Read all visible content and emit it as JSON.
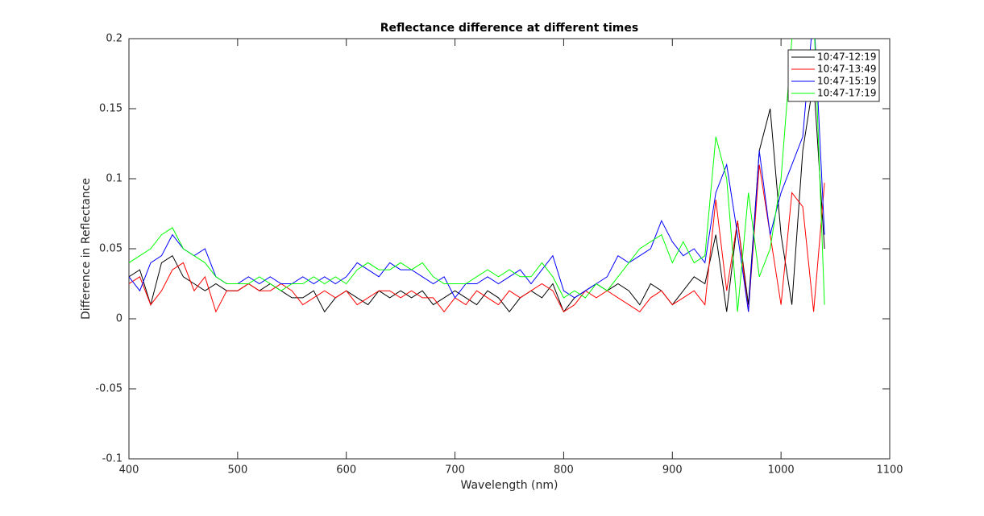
{
  "chart_data": {
    "type": "line",
    "title": "Reflectance difference at different times",
    "xlabel": "Wavelength (nm)",
    "ylabel": "Difference in Reflectance",
    "x": [
      400,
      410,
      420,
      430,
      440,
      450,
      460,
      470,
      480,
      490,
      500,
      510,
      520,
      530,
      540,
      550,
      560,
      570,
      580,
      590,
      600,
      610,
      620,
      630,
      640,
      650,
      660,
      670,
      680,
      690,
      700,
      710,
      720,
      730,
      740,
      750,
      760,
      770,
      780,
      790,
      800,
      810,
      820,
      830,
      840,
      850,
      860,
      870,
      880,
      890,
      900,
      910,
      920,
      930,
      940,
      950,
      960,
      970,
      980,
      990,
      1000,
      1010,
      1020,
      1030,
      1040
    ],
    "series": [
      {
        "name": "10:47-12:19",
        "color": "#000000",
        "values": [
          0.03,
          0.035,
          0.01,
          0.04,
          0.045,
          0.03,
          0.025,
          0.02,
          0.025,
          0.02,
          0.02,
          0.025,
          0.02,
          0.025,
          0.02,
          0.015,
          0.015,
          0.02,
          0.005,
          0.015,
          0.02,
          0.015,
          0.01,
          0.02,
          0.015,
          0.02,
          0.015,
          0.02,
          0.01,
          0.015,
          0.02,
          0.015,
          0.01,
          0.02,
          0.015,
          0.005,
          0.015,
          0.02,
          0.015,
          0.025,
          0.005,
          0.015,
          0.02,
          0.025,
          0.02,
          0.025,
          0.02,
          0.01,
          0.025,
          0.02,
          0.01,
          0.02,
          0.03,
          0.025,
          0.06,
          0.005,
          0.07,
          0.01,
          0.12,
          0.15,
          0.06,
          0.01,
          0.12,
          0.17,
          0.05
        ]
      },
      {
        "name": "10:47-13:49",
        "color": "#ff0000",
        "values": [
          0.025,
          0.03,
          0.01,
          0.02,
          0.035,
          0.04,
          0.02,
          0.03,
          0.005,
          0.02,
          0.02,
          0.025,
          0.02,
          0.02,
          0.025,
          0.02,
          0.01,
          0.015,
          0.02,
          0.015,
          0.02,
          0.01,
          0.015,
          0.02,
          0.02,
          0.015,
          0.02,
          0.015,
          0.015,
          0.005,
          0.015,
          0.01,
          0.02,
          0.015,
          0.01,
          0.02,
          0.015,
          0.02,
          0.025,
          0.02,
          0.005,
          0.01,
          0.02,
          0.015,
          0.02,
          0.015,
          0.01,
          0.005,
          0.015,
          0.02,
          0.01,
          0.015,
          0.02,
          0.01,
          0.085,
          0.02,
          0.07,
          0.005,
          0.11,
          0.06,
          0.01,
          0.09,
          0.08,
          0.005,
          0.097
        ]
      },
      {
        "name": "10:47-15:19",
        "color": "#0000ff",
        "values": [
          0.03,
          0.02,
          0.04,
          0.045,
          0.06,
          0.05,
          0.045,
          0.05,
          0.03,
          0.025,
          0.025,
          0.03,
          0.025,
          0.03,
          0.025,
          0.025,
          0.03,
          0.025,
          0.03,
          0.025,
          0.03,
          0.04,
          0.035,
          0.03,
          0.04,
          0.035,
          0.035,
          0.03,
          0.025,
          0.03,
          0.015,
          0.025,
          0.025,
          0.03,
          0.025,
          0.03,
          0.035,
          0.025,
          0.035,
          0.045,
          0.02,
          0.015,
          0.02,
          0.025,
          0.03,
          0.045,
          0.04,
          0.045,
          0.05,
          0.07,
          0.055,
          0.045,
          0.05,
          0.04,
          0.09,
          0.11,
          0.06,
          0.005,
          0.12,
          0.06,
          0.09,
          0.11,
          0.13,
          0.22,
          0.06
        ]
      },
      {
        "name": "10:47-17:19",
        "color": "#00ff00",
        "values": [
          0.04,
          0.045,
          0.05,
          0.06,
          0.065,
          0.05,
          0.045,
          0.04,
          0.03,
          0.025,
          0.025,
          0.025,
          0.03,
          0.025,
          0.02,
          0.025,
          0.025,
          0.03,
          0.025,
          0.03,
          0.025,
          0.035,
          0.04,
          0.035,
          0.035,
          0.04,
          0.035,
          0.04,
          0.03,
          0.025,
          0.025,
          0.025,
          0.03,
          0.035,
          0.03,
          0.035,
          0.03,
          0.03,
          0.04,
          0.03,
          0.015,
          0.02,
          0.015,
          0.025,
          0.02,
          0.03,
          0.04,
          0.05,
          0.055,
          0.06,
          0.04,
          0.055,
          0.04,
          0.045,
          0.13,
          0.1,
          0.005,
          0.09,
          0.03,
          0.05,
          0.1,
          0.2,
          0.22,
          0.22,
          0.01
        ]
      }
    ],
    "xlim": [
      400,
      1100
    ],
    "xticks": [
      400,
      500,
      600,
      700,
      800,
      900,
      1000,
      1100
    ],
    "ylim": [
      -0.1,
      0.2
    ],
    "yticks": [
      -0.1,
      -0.05,
      0,
      0.05,
      0.1,
      0.15,
      0.2
    ],
    "grid": false,
    "legend": "northeast"
  }
}
